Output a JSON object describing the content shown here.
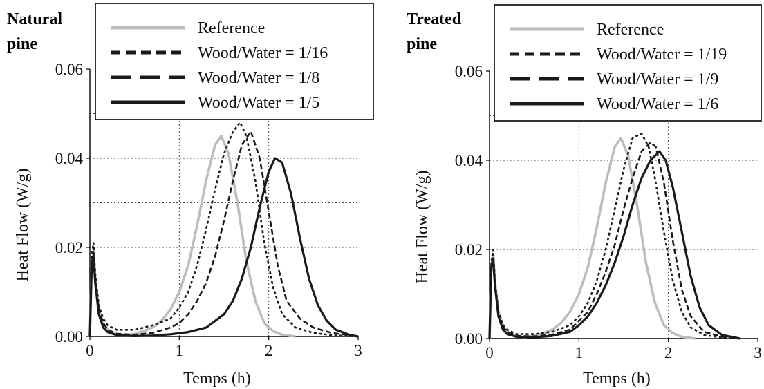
{
  "charts": [
    {
      "panel_title_line1": "Natural",
      "panel_title_line2": "pine"
    },
    {
      "panel_title_line1": "Treated",
      "panel_title_line2": "pine"
    }
  ],
  "chart_data": [
    {
      "type": "line",
      "title": "Natural pine",
      "xlabel": "Temps (h)",
      "ylabel": "Heat Flow (W/g)",
      "xlim": [
        0,
        3
      ],
      "ylim": [
        0,
        0.06
      ],
      "xticks": [
        "0",
        "1",
        "2",
        "3"
      ],
      "yticks": [
        "0.00",
        "0.02",
        "0.04",
        "0.06"
      ],
      "grid": true,
      "legend_position": "top",
      "series": [
        {
          "name": "Reference",
          "style": "gray-solid",
          "x": [
            0,
            0.02,
            0.04,
            0.06,
            0.1,
            0.15,
            0.2,
            0.3,
            0.4,
            0.5,
            0.6,
            0.7,
            0.8,
            0.9,
            1.0,
            1.1,
            1.2,
            1.3,
            1.4,
            1.47,
            1.55,
            1.65,
            1.75,
            1.85,
            1.95,
            2.05,
            2.15,
            2.3
          ],
          "y": [
            0,
            0.016,
            0.019,
            0.013,
            0.006,
            0.003,
            0.0015,
            0.0005,
            0.0003,
            0.0006,
            0.0012,
            0.002,
            0.0035,
            0.006,
            0.01,
            0.016,
            0.025,
            0.035,
            0.043,
            0.045,
            0.041,
            0.03,
            0.017,
            0.008,
            0.003,
            0.0012,
            0.0004,
            0
          ]
        },
        {
          "name": "Wood/Water = 1/16",
          "style": "short-dash",
          "x": [
            0,
            0.02,
            0.04,
            0.06,
            0.1,
            0.15,
            0.2,
            0.3,
            0.5,
            0.7,
            0.9,
            1.0,
            1.1,
            1.2,
            1.3,
            1.4,
            1.5,
            1.6,
            1.68,
            1.75,
            1.85,
            1.95,
            2.05,
            2.15,
            2.3,
            2.5,
            2.7,
            2.9,
            3.0
          ],
          "y": [
            0,
            0.018,
            0.021,
            0.014,
            0.007,
            0.004,
            0.0025,
            0.0015,
            0.0015,
            0.0025,
            0.004,
            0.0065,
            0.01,
            0.016,
            0.024,
            0.033,
            0.041,
            0.046,
            0.048,
            0.045,
            0.035,
            0.021,
            0.011,
            0.005,
            0.002,
            0.0008,
            0.0003,
            0.0001,
            0
          ]
        },
        {
          "name": "Wood/Water = 1/8",
          "style": "long-dash",
          "x": [
            0,
            0.02,
            0.04,
            0.06,
            0.1,
            0.15,
            0.2,
            0.3,
            0.5,
            0.7,
            0.9,
            1.0,
            1.1,
            1.2,
            1.3,
            1.4,
            1.5,
            1.6,
            1.7,
            1.8,
            1.9,
            2.0,
            2.1,
            2.2,
            2.35,
            2.5,
            2.7,
            2.9,
            3.0
          ],
          "y": [
            0,
            0.016,
            0.019,
            0.013,
            0.006,
            0.003,
            0.0015,
            0.0006,
            0.0004,
            0.0008,
            0.002,
            0.003,
            0.005,
            0.008,
            0.012,
            0.018,
            0.026,
            0.035,
            0.043,
            0.046,
            0.04,
            0.028,
            0.016,
            0.008,
            0.004,
            0.002,
            0.0008,
            0.0003,
            0
          ]
        },
        {
          "name": "Wood/Water = 1/5",
          "style": "solid",
          "x": [
            0,
            0.02,
            0.04,
            0.06,
            0.1,
            0.15,
            0.2,
            0.3,
            0.5,
            0.7,
            0.9,
            1.1,
            1.3,
            1.5,
            1.6,
            1.7,
            1.8,
            1.9,
            2.0,
            2.07,
            2.15,
            2.25,
            2.35,
            2.45,
            2.55,
            2.65,
            2.75,
            2.9,
            3.0
          ],
          "y": [
            0,
            0.016,
            0.018,
            0.012,
            0.005,
            0.002,
            0.001,
            0.0003,
            0.0001,
            0.0002,
            0.0005,
            0.001,
            0.002,
            0.005,
            0.008,
            0.013,
            0.02,
            0.029,
            0.037,
            0.04,
            0.039,
            0.032,
            0.022,
            0.013,
            0.007,
            0.0035,
            0.0015,
            0.0004,
            0
          ]
        }
      ]
    },
    {
      "type": "line",
      "title": "Treated pine",
      "xlabel": "Temps (h)",
      "ylabel": "Heat Flow (W/g)",
      "xlim": [
        0,
        3
      ],
      "ylim": [
        0,
        0.06
      ],
      "xticks": [
        "0",
        "1",
        "2",
        "3"
      ],
      "yticks": [
        "0.00",
        "0.02",
        "0.04",
        "0.06"
      ],
      "grid": true,
      "legend_position": "top",
      "series": [
        {
          "name": "Reference",
          "style": "gray-solid",
          "x": [
            0,
            0.02,
            0.04,
            0.06,
            0.1,
            0.15,
            0.2,
            0.3,
            0.4,
            0.5,
            0.6,
            0.7,
            0.8,
            0.9,
            1.0,
            1.1,
            1.2,
            1.3,
            1.4,
            1.47,
            1.55,
            1.65,
            1.75,
            1.85,
            1.95,
            2.05,
            2.15,
            2.3
          ],
          "y": [
            0,
            0.016,
            0.019,
            0.013,
            0.006,
            0.003,
            0.0015,
            0.0005,
            0.0003,
            0.0006,
            0.0012,
            0.002,
            0.0035,
            0.006,
            0.01,
            0.016,
            0.025,
            0.035,
            0.043,
            0.045,
            0.041,
            0.03,
            0.017,
            0.008,
            0.003,
            0.0012,
            0.0004,
            0
          ]
        },
        {
          "name": "Wood/Water = 1/19",
          "style": "short-dash",
          "x": [
            0,
            0.02,
            0.04,
            0.06,
            0.1,
            0.15,
            0.2,
            0.3,
            0.5,
            0.7,
            0.9,
            1.0,
            1.1,
            1.2,
            1.3,
            1.4,
            1.5,
            1.6,
            1.7,
            1.78,
            1.85,
            1.95,
            2.05,
            2.15,
            2.25,
            2.4,
            2.6,
            2.8
          ],
          "y": [
            0,
            0.017,
            0.02,
            0.013,
            0.006,
            0.003,
            0.002,
            0.001,
            0.001,
            0.0015,
            0.003,
            0.005,
            0.008,
            0.013,
            0.02,
            0.029,
            0.038,
            0.045,
            0.046,
            0.043,
            0.036,
            0.024,
            0.013,
            0.006,
            0.0025,
            0.0008,
            0.0002,
            0
          ]
        },
        {
          "name": "Wood/Water = 1/9",
          "style": "long-dash",
          "x": [
            0,
            0.02,
            0.04,
            0.06,
            0.1,
            0.15,
            0.2,
            0.3,
            0.5,
            0.7,
            0.9,
            1.0,
            1.1,
            1.2,
            1.3,
            1.4,
            1.5,
            1.6,
            1.7,
            1.8,
            1.86,
            1.95,
            2.05,
            2.15,
            2.25,
            2.4,
            2.6,
            2.8
          ],
          "y": [
            0,
            0.016,
            0.018,
            0.012,
            0.005,
            0.0025,
            0.0015,
            0.0006,
            0.0005,
            0.0009,
            0.002,
            0.004,
            0.006,
            0.01,
            0.015,
            0.021,
            0.029,
            0.036,
            0.042,
            0.044,
            0.043,
            0.035,
            0.022,
            0.011,
            0.005,
            0.0015,
            0.0004,
            0
          ]
        },
        {
          "name": "Wood/Water = 1/6",
          "style": "solid",
          "x": [
            0,
            0.02,
            0.04,
            0.06,
            0.1,
            0.15,
            0.2,
            0.3,
            0.5,
            0.7,
            0.9,
            1.0,
            1.1,
            1.2,
            1.3,
            1.4,
            1.5,
            1.6,
            1.7,
            1.8,
            1.9,
            1.97,
            2.05,
            2.15,
            2.25,
            2.35,
            2.45,
            2.6,
            2.8
          ],
          "y": [
            0,
            0.016,
            0.018,
            0.012,
            0.005,
            0.002,
            0.001,
            0.0004,
            0.0003,
            0.0006,
            0.0015,
            0.003,
            0.005,
            0.008,
            0.012,
            0.017,
            0.023,
            0.03,
            0.036,
            0.04,
            0.042,
            0.04,
            0.034,
            0.024,
            0.014,
            0.007,
            0.003,
            0.0008,
            0
          ]
        }
      ]
    }
  ]
}
